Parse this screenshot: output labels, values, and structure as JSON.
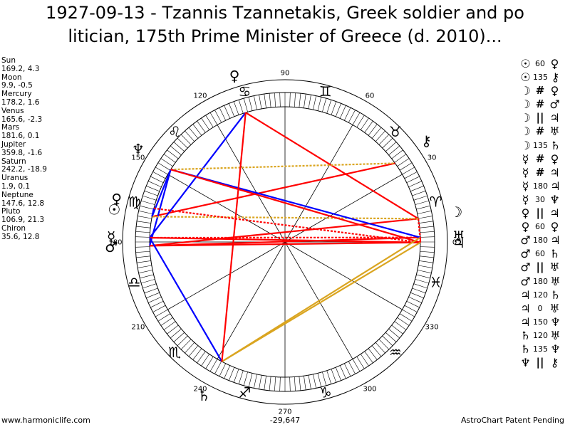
{
  "title": {
    "line1": "1927-09-13 - Tzannis Tzannetakis, Greek soldier and po",
    "line2": "litician, 175th Prime Minister of Greece (d. 2010)..."
  },
  "planets": [
    {
      "name": "Sun",
      "coords": "169.2, 4.3"
    },
    {
      "name": "Moon",
      "coords": "9.9, -0.5"
    },
    {
      "name": "Mercury",
      "coords": "178.2, 1.6"
    },
    {
      "name": "Venus",
      "coords": "165.6, -2.3"
    },
    {
      "name": "Mars",
      "coords": "181.6, 0.1"
    },
    {
      "name": "Jupiter",
      "coords": "359.8, -1.6"
    },
    {
      "name": "Saturn",
      "coords": "242.2, -18.9"
    },
    {
      "name": "Uranus",
      "coords": "1.9, 0.1"
    },
    {
      "name": "Neptune",
      "coords": "147.6, 12.8"
    },
    {
      "name": "Pluto",
      "coords": "106.9, 21.3"
    },
    {
      "name": "Chiron",
      "coords": "35.6, 12.8"
    }
  ],
  "aspects": [
    {
      "p1": "☉",
      "kind": "60",
      "p2": "♀"
    },
    {
      "p1": "☉",
      "kind": "135",
      "p2": "⚷"
    },
    {
      "p1": "☽",
      "kind": "#",
      "p2": "♀"
    },
    {
      "p1": "☽",
      "kind": "#",
      "p2": "♂"
    },
    {
      "p1": "☽",
      "kind": "||",
      "p2": "♃"
    },
    {
      "p1": "☽",
      "kind": "#",
      "p2": "♅"
    },
    {
      "p1": "☽",
      "kind": "135",
      "p2": "♄"
    },
    {
      "p1": "☿",
      "kind": "#",
      "p2": "♀"
    },
    {
      "p1": "☿",
      "kind": "#",
      "p2": "♃"
    },
    {
      "p1": "☿",
      "kind": "180",
      "p2": "♃"
    },
    {
      "p1": "☿",
      "kind": "30",
      "p2": "♆"
    },
    {
      "p1": "♀",
      "kind": "||",
      "p2": "♃"
    },
    {
      "p1": "♀",
      "kind": "60",
      "p2": "♀"
    },
    {
      "p1": "♂",
      "kind": "180",
      "p2": "♃"
    },
    {
      "p1": "♂",
      "kind": "60",
      "p2": "♄"
    },
    {
      "p1": "♂",
      "kind": "||",
      "p2": "♅"
    },
    {
      "p1": "♂",
      "kind": "180",
      "p2": "♅"
    },
    {
      "p1": "♃",
      "kind": "120",
      "p2": "♄"
    },
    {
      "p1": "♃",
      "kind": "0",
      "p2": "♅"
    },
    {
      "p1": "♃",
      "kind": "150",
      "p2": "♆"
    },
    {
      "p1": "♄",
      "kind": "120",
      "p2": "♅"
    },
    {
      "p1": "♄",
      "kind": "135",
      "p2": "♆"
    },
    {
      "p1": "♆",
      "kind": "||",
      "p2": "⚷"
    }
  ],
  "footer": {
    "left": "www.harmoniclife.com",
    "center": "-29,647",
    "right": "AstroChart Patent Pending"
  },
  "chart_data": {
    "type": "astrological-wheel",
    "degree_labels": [
      "90",
      "60",
      "30",
      "0",
      "330",
      "300",
      "270",
      "240",
      "210",
      "180",
      "150",
      "120"
    ],
    "zodiac_signs": [
      "♈",
      "♉",
      "♊",
      "♋",
      "♌",
      "♍",
      "♎",
      "♏",
      "♐",
      "♑",
      "♒",
      "♓"
    ],
    "bodies": [
      {
        "glyph": "☉",
        "lon": 169.2
      },
      {
        "glyph": "☽",
        "lon": 9.9
      },
      {
        "glyph": "☿",
        "lon": 178.2
      },
      {
        "glyph": "♀",
        "lon": 165.6
      },
      {
        "glyph": "♂",
        "lon": 181.6
      },
      {
        "glyph": "♃",
        "lon": 359.8
      },
      {
        "glyph": "♄",
        "lon": 242.2
      },
      {
        "glyph": "♅",
        "lon": 1.9
      },
      {
        "glyph": "♆",
        "lon": 147.6
      },
      {
        "glyph": "♀",
        "lon": 106.9
      },
      {
        "glyph": "⚷",
        "lon": 35.6
      }
    ],
    "aspect_lines": [
      {
        "a": 0,
        "b": 3,
        "color": "#0000ff",
        "style": "solid"
      },
      {
        "a": 0,
        "b": 10,
        "color": "#ff0000",
        "style": "solid"
      },
      {
        "a": 2,
        "b": 9,
        "color": "#0000ff",
        "style": "solid"
      },
      {
        "a": 4,
        "b": 8,
        "color": "#0000ff",
        "style": "solid"
      },
      {
        "a": 0,
        "b": 8,
        "color": "#0000ff",
        "style": "solid"
      },
      {
        "a": 1,
        "b": 9,
        "color": "#ff0000",
        "style": "solid"
      },
      {
        "a": 1,
        "b": 4,
        "color": "#ff0000",
        "style": "solid"
      },
      {
        "a": 1,
        "b": 5,
        "color": "#ff0000",
        "style": "dotted"
      },
      {
        "a": 1,
        "b": 7,
        "color": "#ff0000",
        "style": "dotted"
      },
      {
        "a": 1,
        "b": 0,
        "color": "#daa520",
        "style": "dotted"
      },
      {
        "a": 2,
        "b": 5,
        "color": "#ff0000",
        "style": "solid"
      },
      {
        "a": 2,
        "b": 7,
        "color": "#ff0000",
        "style": "dotted"
      },
      {
        "a": 4,
        "b": 5,
        "color": "#ff0000",
        "style": "solid"
      },
      {
        "a": 4,
        "b": 7,
        "color": "#ff0000",
        "style": "solid"
      },
      {
        "a": 3,
        "b": 5,
        "color": "#ff0000",
        "style": "dotted"
      },
      {
        "a": 8,
        "b": 10,
        "color": "#daa520",
        "style": "dotted"
      },
      {
        "a": 8,
        "b": 7,
        "color": "#0000ff",
        "style": "solid"
      },
      {
        "a": 8,
        "b": 5,
        "color": "#ff0000",
        "style": "solid"
      },
      {
        "a": 6,
        "b": 5,
        "color": "#daa520",
        "style": "solid"
      },
      {
        "a": 6,
        "b": 7,
        "color": "#daa520",
        "style": "solid"
      },
      {
        "a": 6,
        "b": 2,
        "color": "#0000ff",
        "style": "solid"
      },
      {
        "a": 6,
        "b": 9,
        "color": "#ff0000",
        "style": "solid"
      },
      {
        "a": 5,
        "b": 7,
        "color": "#ff0000",
        "style": "solid"
      }
    ]
  }
}
